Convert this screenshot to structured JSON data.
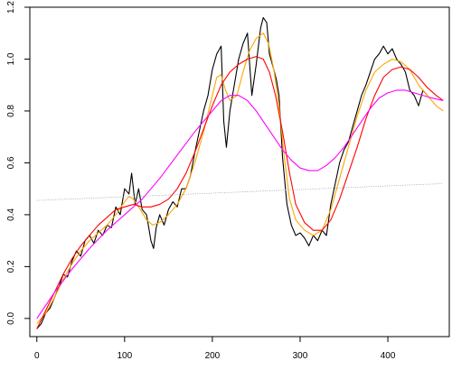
{
  "chart_data": {
    "type": "line",
    "title": "",
    "xlabel": "",
    "ylabel": "",
    "xlim": [
      -8,
      470
    ],
    "ylim": [
      -0.07,
      1.2
    ],
    "x_ticks": [
      0,
      100,
      200,
      300,
      400
    ],
    "y_ticks": [
      0.0,
      0.2,
      0.4,
      0.6,
      0.8,
      1.0,
      1.2
    ],
    "x_tick_labels": [
      "0",
      "100",
      "200",
      "300",
      "400"
    ],
    "y_tick_labels": [
      "0.0",
      "0.2",
      "0.4",
      "0.6",
      "0.8",
      "1.0",
      "1.2"
    ],
    "grid": false,
    "legend": "none",
    "series": [
      {
        "color": "#000000",
        "style": "solid",
        "points": [
          [
            0,
            -0.04
          ],
          [
            5,
            -0.02
          ],
          [
            10,
            0.02
          ],
          [
            15,
            0.04
          ],
          [
            20,
            0.08
          ],
          [
            25,
            0.12
          ],
          [
            30,
            0.17
          ],
          [
            35,
            0.16
          ],
          [
            40,
            0.22
          ],
          [
            45,
            0.26
          ],
          [
            50,
            0.24
          ],
          [
            55,
            0.3
          ],
          [
            60,
            0.32
          ],
          [
            65,
            0.29
          ],
          [
            70,
            0.34
          ],
          [
            75,
            0.32
          ],
          [
            80,
            0.36
          ],
          [
            85,
            0.35
          ],
          [
            90,
            0.43
          ],
          [
            95,
            0.4
          ],
          [
            100,
            0.5
          ],
          [
            105,
            0.48
          ],
          [
            108,
            0.56
          ],
          [
            112,
            0.44
          ],
          [
            116,
            0.5
          ],
          [
            120,
            0.42
          ],
          [
            125,
            0.4
          ],
          [
            128,
            0.34
          ],
          [
            130,
            0.3
          ],
          [
            133,
            0.27
          ],
          [
            136,
            0.35
          ],
          [
            140,
            0.4
          ],
          [
            145,
            0.36
          ],
          [
            150,
            0.42
          ],
          [
            155,
            0.45
          ],
          [
            160,
            0.43
          ],
          [
            165,
            0.5
          ],
          [
            170,
            0.5
          ],
          [
            175,
            0.55
          ],
          [
            180,
            0.64
          ],
          [
            185,
            0.72
          ],
          [
            190,
            0.8
          ],
          [
            195,
            0.86
          ],
          [
            200,
            0.96
          ],
          [
            205,
            1.02
          ],
          [
            210,
            1.05
          ],
          [
            213,
            0.76
          ],
          [
            216,
            0.66
          ],
          [
            220,
            0.8
          ],
          [
            225,
            0.9
          ],
          [
            230,
            1.0
          ],
          [
            235,
            1.06
          ],
          [
            240,
            1.1
          ],
          [
            245,
            0.86
          ],
          [
            250,
            0.98
          ],
          [
            255,
            1.12
          ],
          [
            258,
            1.16
          ],
          [
            262,
            1.14
          ],
          [
            265,
            1.02
          ],
          [
            270,
            0.96
          ],
          [
            273,
            0.92
          ],
          [
            276,
            0.86
          ],
          [
            280,
            0.62
          ],
          [
            285,
            0.44
          ],
          [
            290,
            0.36
          ],
          [
            295,
            0.32
          ],
          [
            300,
            0.33
          ],
          [
            305,
            0.31
          ],
          [
            310,
            0.28
          ],
          [
            315,
            0.32
          ],
          [
            320,
            0.3
          ],
          [
            325,
            0.34
          ],
          [
            330,
            0.32
          ],
          [
            335,
            0.44
          ],
          [
            340,
            0.52
          ],
          [
            345,
            0.6
          ],
          [
            350,
            0.65
          ],
          [
            355,
            0.68
          ],
          [
            360,
            0.74
          ],
          [
            365,
            0.8
          ],
          [
            370,
            0.86
          ],
          [
            375,
            0.9
          ],
          [
            380,
            0.95
          ],
          [
            385,
            1.0
          ],
          [
            390,
            1.02
          ],
          [
            395,
            1.05
          ],
          [
            400,
            1.02
          ],
          [
            405,
            1.04
          ],
          [
            410,
            1.0
          ],
          [
            415,
            0.98
          ],
          [
            420,
            0.95
          ],
          [
            425,
            0.88
          ],
          [
            430,
            0.86
          ],
          [
            435,
            0.82
          ],
          [
            440,
            0.88
          ],
          [
            445,
            0.86
          ]
        ]
      },
      {
        "color": "#FFA500",
        "style": "solid",
        "points": [
          [
            0,
            -0.02
          ],
          [
            10,
            0.02
          ],
          [
            20,
            0.08
          ],
          [
            30,
            0.15
          ],
          [
            40,
            0.21
          ],
          [
            50,
            0.26
          ],
          [
            60,
            0.3
          ],
          [
            70,
            0.33
          ],
          [
            80,
            0.36
          ],
          [
            90,
            0.4
          ],
          [
            100,
            0.45
          ],
          [
            105,
            0.47
          ],
          [
            110,
            0.46
          ],
          [
            118,
            0.42
          ],
          [
            125,
            0.38
          ],
          [
            132,
            0.36
          ],
          [
            140,
            0.37
          ],
          [
            150,
            0.4
          ],
          [
            160,
            0.44
          ],
          [
            170,
            0.5
          ],
          [
            180,
            0.6
          ],
          [
            190,
            0.72
          ],
          [
            200,
            0.86
          ],
          [
            205,
            0.93
          ],
          [
            210,
            0.94
          ],
          [
            215,
            0.88
          ],
          [
            220,
            0.84
          ],
          [
            228,
            0.86
          ],
          [
            235,
            0.95
          ],
          [
            242,
            1.03
          ],
          [
            250,
            1.08
          ],
          [
            258,
            1.1
          ],
          [
            264,
            1.06
          ],
          [
            270,
            0.96
          ],
          [
            276,
            0.82
          ],
          [
            282,
            0.62
          ],
          [
            288,
            0.46
          ],
          [
            295,
            0.38
          ],
          [
            305,
            0.34
          ],
          [
            315,
            0.32
          ],
          [
            325,
            0.34
          ],
          [
            335,
            0.42
          ],
          [
            345,
            0.54
          ],
          [
            355,
            0.66
          ],
          [
            365,
            0.78
          ],
          [
            375,
            0.88
          ],
          [
            385,
            0.95
          ],
          [
            395,
            0.98
          ],
          [
            405,
            1.0
          ],
          [
            415,
            0.99
          ],
          [
            425,
            0.96
          ],
          [
            435,
            0.9
          ],
          [
            445,
            0.86
          ],
          [
            455,
            0.82
          ],
          [
            463,
            0.8
          ]
        ]
      },
      {
        "color": "#FF0000",
        "style": "solid",
        "points": [
          [
            0,
            -0.04
          ],
          [
            10,
            0.03
          ],
          [
            20,
            0.1
          ],
          [
            30,
            0.17
          ],
          [
            40,
            0.23
          ],
          [
            50,
            0.28
          ],
          [
            60,
            0.32
          ],
          [
            70,
            0.36
          ],
          [
            80,
            0.39
          ],
          [
            90,
            0.42
          ],
          [
            100,
            0.43
          ],
          [
            110,
            0.44
          ],
          [
            120,
            0.43
          ],
          [
            130,
            0.43
          ],
          [
            140,
            0.44
          ],
          [
            150,
            0.46
          ],
          [
            160,
            0.5
          ],
          [
            170,
            0.56
          ],
          [
            180,
            0.64
          ],
          [
            190,
            0.73
          ],
          [
            200,
            0.82
          ],
          [
            210,
            0.9
          ],
          [
            220,
            0.95
          ],
          [
            230,
            0.98
          ],
          [
            240,
            1.0
          ],
          [
            250,
            1.01
          ],
          [
            258,
            1.0
          ],
          [
            265,
            0.95
          ],
          [
            272,
            0.86
          ],
          [
            280,
            0.72
          ],
          [
            288,
            0.56
          ],
          [
            295,
            0.44
          ],
          [
            305,
            0.37
          ],
          [
            315,
            0.34
          ],
          [
            325,
            0.34
          ],
          [
            335,
            0.38
          ],
          [
            345,
            0.46
          ],
          [
            355,
            0.56
          ],
          [
            365,
            0.66
          ],
          [
            375,
            0.77
          ],
          [
            385,
            0.86
          ],
          [
            395,
            0.93
          ],
          [
            405,
            0.96
          ],
          [
            415,
            0.97
          ],
          [
            425,
            0.96
          ],
          [
            435,
            0.93
          ],
          [
            445,
            0.89
          ],
          [
            455,
            0.86
          ],
          [
            463,
            0.84
          ]
        ]
      },
      {
        "color": "#FF00FF",
        "style": "solid",
        "points": [
          [
            0,
            0.0
          ],
          [
            20,
            0.1
          ],
          [
            40,
            0.19
          ],
          [
            60,
            0.27
          ],
          [
            80,
            0.34
          ],
          [
            100,
            0.4
          ],
          [
            120,
            0.46
          ],
          [
            140,
            0.54
          ],
          [
            160,
            0.63
          ],
          [
            180,
            0.72
          ],
          [
            200,
            0.8
          ],
          [
            210,
            0.84
          ],
          [
            220,
            0.86
          ],
          [
            230,
            0.86
          ],
          [
            240,
            0.84
          ],
          [
            250,
            0.8
          ],
          [
            260,
            0.75
          ],
          [
            270,
            0.7
          ],
          [
            280,
            0.65
          ],
          [
            290,
            0.61
          ],
          [
            300,
            0.58
          ],
          [
            310,
            0.57
          ],
          [
            320,
            0.57
          ],
          [
            330,
            0.59
          ],
          [
            340,
            0.62
          ],
          [
            350,
            0.66
          ],
          [
            360,
            0.71
          ],
          [
            370,
            0.76
          ],
          [
            380,
            0.81
          ],
          [
            390,
            0.85
          ],
          [
            400,
            0.87
          ],
          [
            410,
            0.88
          ],
          [
            420,
            0.88
          ],
          [
            430,
            0.87
          ],
          [
            440,
            0.86
          ],
          [
            450,
            0.85
          ],
          [
            463,
            0.84
          ]
        ]
      },
      {
        "color": "#A0A0A0",
        "style": "dotted",
        "points": [
          [
            0,
            0.455
          ],
          [
            463,
            0.52
          ]
        ]
      }
    ]
  }
}
